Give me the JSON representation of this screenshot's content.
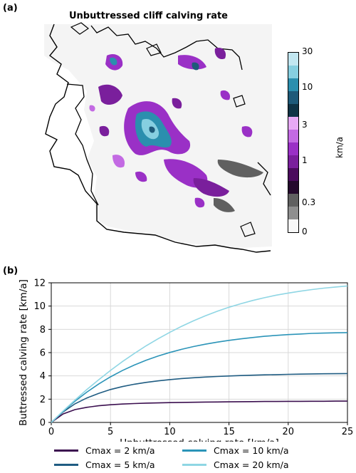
{
  "panel_a": {
    "label": "(a)",
    "title": "Unbuttressed cliff calving rate",
    "colorbar": {
      "unit": "km/a",
      "ticks": [
        "30",
        "10",
        "3",
        "1",
        "0.3",
        "0"
      ],
      "colors": [
        "#f7f7f7",
        "#8f8f8f",
        "#606060",
        "#250a2d",
        "#4b0b5d",
        "#7a1f9c",
        "#9a30c6",
        "#c36ae3",
        "#e7a9f4",
        "#0f3345",
        "#1e5a79",
        "#2b8fae",
        "#86cfe0",
        "#c2e7f1"
      ]
    }
  },
  "panel_b": {
    "label": "(b)"
  },
  "chart_data": {
    "type": "line",
    "title": "",
    "xlabel": "Unbuttressed calving rate [km/a]",
    "ylabel": "Buttressed calving rate [km/a]",
    "xlim": [
      0,
      25
    ],
    "ylim": [
      0,
      12
    ],
    "xticks": [
      0,
      5,
      10,
      15,
      20,
      25
    ],
    "yticks": [
      0,
      2,
      4,
      6,
      8,
      10,
      12
    ],
    "grid": true,
    "legend_position": "below",
    "x": [
      0,
      1,
      2,
      3,
      4,
      5,
      6,
      7,
      8,
      9,
      10,
      11,
      12,
      13,
      14,
      15,
      16,
      17,
      18,
      19,
      20,
      21,
      22,
      23,
      24,
      25
    ],
    "series": [
      {
        "name": "Cmax = 2 km/a",
        "color": "#3b0f4f",
        "values": [
          0,
          0.73,
          1.1,
          1.3,
          1.43,
          1.52,
          1.58,
          1.62,
          1.66,
          1.68,
          1.7,
          1.72,
          1.73,
          1.75,
          1.76,
          1.77,
          1.78,
          1.79,
          1.8,
          1.8,
          1.81,
          1.81,
          1.82,
          1.82,
          1.83,
          1.83
        ]
      },
      {
        "name": "Cmax = 5 km/a",
        "color": "#1f5c82",
        "values": [
          0,
          0.9,
          1.6,
          2.1,
          2.5,
          2.83,
          3.08,
          3.28,
          3.44,
          3.57,
          3.68,
          3.77,
          3.84,
          3.9,
          3.95,
          3.99,
          4.03,
          4.06,
          4.09,
          4.11,
          4.13,
          4.15,
          4.17,
          4.18,
          4.19,
          4.2
        ]
      },
      {
        "name": "Cmax = 10 km/a",
        "color": "#2b94b8",
        "values": [
          0,
          0.95,
          1.82,
          2.6,
          3.3,
          3.92,
          4.46,
          4.93,
          5.34,
          5.7,
          6.01,
          6.28,
          6.52,
          6.72,
          6.9,
          7.05,
          7.18,
          7.3,
          7.4,
          7.48,
          7.55,
          7.6,
          7.65,
          7.68,
          7.7,
          7.72
        ]
      },
      {
        "name": "Cmax = 20 km/a",
        "color": "#8fd6e4",
        "values": [
          0,
          0.98,
          1.92,
          2.82,
          3.67,
          4.47,
          5.22,
          5.92,
          6.58,
          7.18,
          7.74,
          8.26,
          8.73,
          9.16,
          9.55,
          9.9,
          10.2,
          10.48,
          10.72,
          10.94,
          11.12,
          11.28,
          11.42,
          11.54,
          11.64,
          11.73
        ]
      }
    ]
  }
}
